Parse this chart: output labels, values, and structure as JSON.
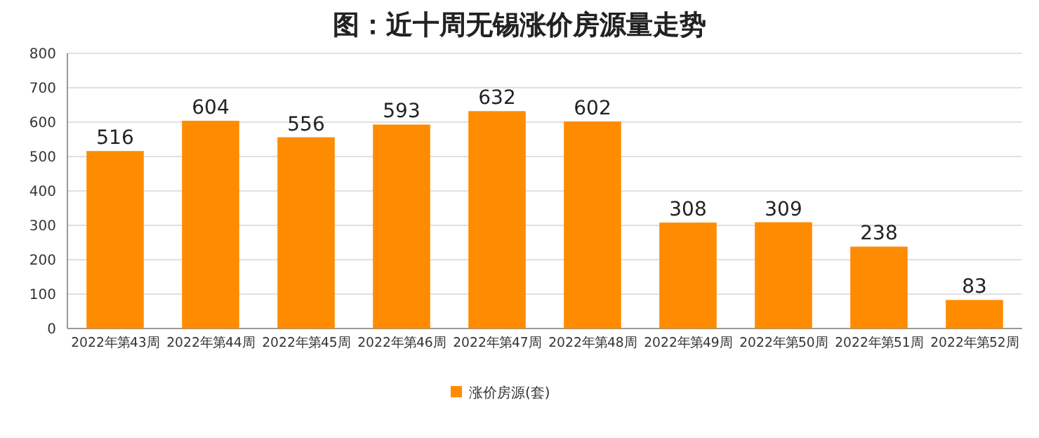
{
  "chart_data": {
    "type": "bar",
    "title": "图：近十周无锡涨价房源量走势",
    "categories": [
      "2022年第43周",
      "2022年第44周",
      "2022年第45周",
      "2022年第46周",
      "2022年第47周",
      "2022年第48周",
      "2022年第49周",
      "2022年第50周",
      "2022年第51周",
      "2022年第52周"
    ],
    "series": [
      {
        "name": "涨价房源(套)",
        "color": "#ff8c00",
        "values": [
          516,
          604,
          556,
          593,
          632,
          602,
          308,
          309,
          238,
          83
        ]
      }
    ],
    "ylim": [
      0,
      800
    ],
    "yticks": [
      0,
      100,
      200,
      300,
      400,
      500,
      600,
      700,
      800
    ],
    "grid": "y",
    "legend": "bottom",
    "data_labels": true
  }
}
